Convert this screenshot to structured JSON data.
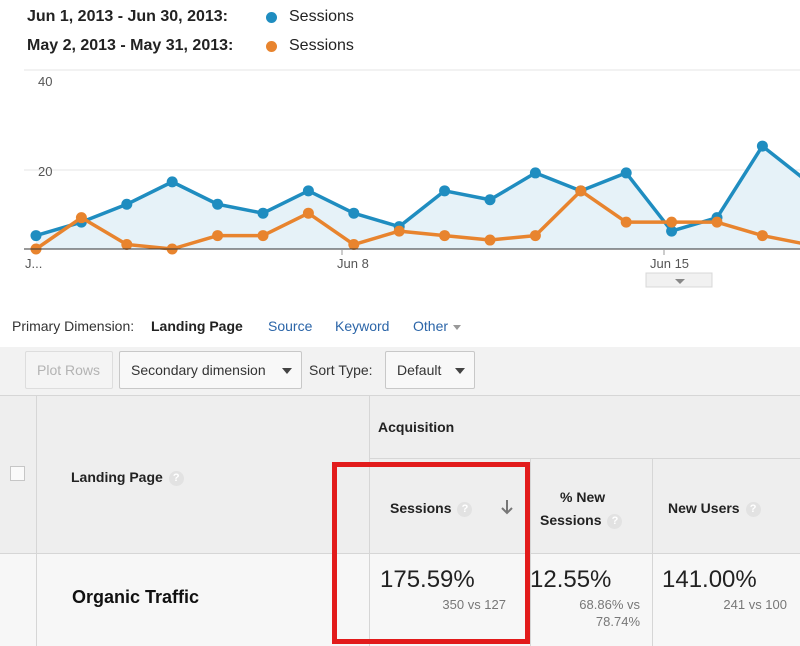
{
  "legend": [
    {
      "range": "Jun 1, 2013 - Jun 30, 2013:",
      "metric": "Sessions",
      "color": "#1f8dc0"
    },
    {
      "range": "May 2, 2013 - May 31, 2013:",
      "metric": "Sessions",
      "color": "#e8842e"
    }
  ],
  "chart_data": {
    "type": "line",
    "y_ticks": [
      "40",
      "20"
    ],
    "ylim": [
      0,
      40
    ],
    "x_tick_labels": [
      "J...",
      "Jun 8",
      "Jun 15"
    ],
    "grid": true,
    "series": [
      {
        "name": "Sessions (Jun 1, 2013 - Jun 30, 2013)",
        "color": "#1f8dc0",
        "area": true,
        "x": [
          1,
          2,
          3,
          4,
          5,
          6,
          7,
          8,
          9,
          10,
          11,
          12,
          13,
          14,
          15,
          16,
          17,
          18
        ],
        "values": [
          3,
          6,
          10,
          15,
          10,
          8,
          13,
          8,
          5,
          13,
          11,
          17,
          13,
          17,
          4,
          7,
          23,
          15
        ]
      },
      {
        "name": "Sessions (May 2, 2013 - May 31, 2013)",
        "color": "#e8842e",
        "area": false,
        "x": [
          1,
          2,
          3,
          4,
          5,
          6,
          7,
          8,
          9,
          10,
          11,
          12,
          13,
          14,
          15,
          16,
          17,
          18
        ],
        "values": [
          0,
          7,
          1,
          0,
          3,
          3,
          8,
          1,
          4,
          3,
          2,
          3,
          13,
          6,
          6,
          6,
          3,
          1
        ]
      }
    ]
  },
  "dimension": {
    "label": "Primary Dimension:",
    "active": "Landing Page",
    "links": [
      "Source",
      "Keyword",
      "Other"
    ]
  },
  "toolbar": {
    "plot_rows": "Plot Rows",
    "secondary_dimension": "Secondary dimension",
    "sort_type_label": "Sort Type:",
    "sort_type_value": "Default"
  },
  "table": {
    "group_header": "Acquisition",
    "col_landing": "Landing Page",
    "col_sessions": "Sessions",
    "col_new_sessions_1": "% New",
    "col_new_sessions_2": "Sessions",
    "col_new_users": "New Users",
    "help": "?",
    "row": {
      "label": "Organic Traffic",
      "sessions_change": "175.59%",
      "sessions_detail": "350 vs 127",
      "new_sessions_change": "12.55%",
      "new_sessions_detail_1": "68.86% vs",
      "new_sessions_detail_2": "78.74%",
      "new_users_change": "141.00%",
      "new_users_detail": "241 vs 100"
    },
    "colors": {
      "up": "#3fae3a",
      "down": "#e0262b"
    }
  }
}
